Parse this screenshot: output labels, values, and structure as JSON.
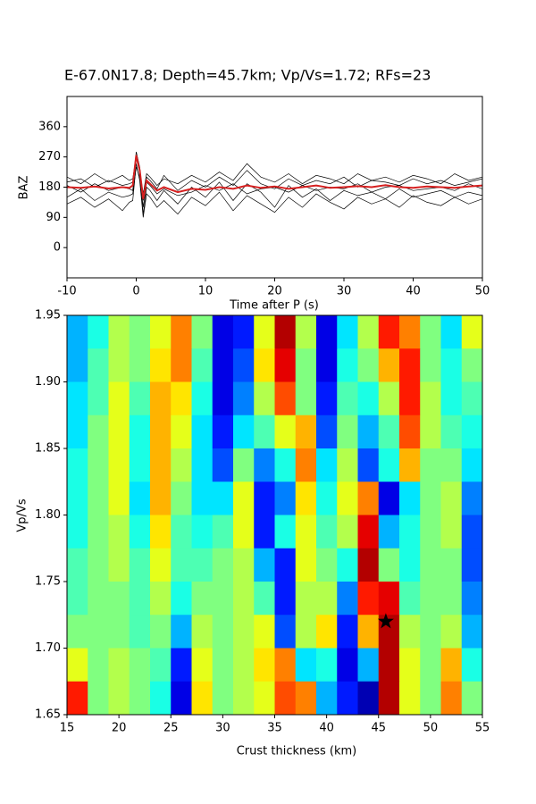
{
  "chart_data": [
    {
      "type": "line",
      "title": "E-67.0N17.8; Depth=45.7km; Vp/Vs=1.72; RFs=23",
      "xlabel": "Time after P (s)",
      "ylabel": "BAZ",
      "xlim": [
        -10,
        50
      ],
      "ylim": [
        -90,
        450
      ],
      "xticks": [
        -10,
        0,
        10,
        20,
        30,
        40,
        50
      ],
      "yticks": [
        0,
        90,
        180,
        270,
        360
      ],
      "x": [
        -10,
        -8,
        -6,
        -4,
        -2,
        -1,
        -0.5,
        0,
        0.5,
        1,
        1.5,
        2,
        3,
        4,
        6,
        8,
        10,
        12,
        14,
        16,
        18,
        20,
        22,
        24,
        26,
        28,
        30,
        32,
        34,
        36,
        38,
        40,
        42,
        44,
        46,
        48,
        50
      ],
      "series": [
        {
          "color": "#000000",
          "values": [
            195,
            205,
            180,
            200,
            185,
            190,
            195,
            285,
            240,
            140,
            210,
            200,
            175,
            215,
            170,
            200,
            180,
            210,
            185,
            230,
            190,
            175,
            205,
            185,
            200,
            190,
            210,
            180,
            200,
            195,
            185,
            205,
            190,
            200,
            185,
            195,
            205
          ]
        },
        {
          "color": "#000000",
          "values": [
            130,
            150,
            120,
            145,
            110,
            135,
            140,
            250,
            200,
            90,
            160,
            150,
            120,
            140,
            100,
            150,
            125,
            165,
            110,
            155,
            130,
            105,
            150,
            120,
            160,
            135,
            115,
            150,
            130,
            145,
            120,
            155,
            135,
            125,
            150,
            130,
            145
          ]
        },
        {
          "color": "#000000",
          "values": [
            210,
            190,
            220,
            195,
            215,
            200,
            205,
            270,
            230,
            160,
            220,
            210,
            185,
            205,
            190,
            215,
            195,
            225,
            200,
            250,
            210,
            195,
            220,
            190,
            215,
            205,
            190,
            220,
            200,
            210,
            195,
            215,
            205,
            190,
            220,
            200,
            210
          ]
        },
        {
          "color": "#000000",
          "values": [
            150,
            175,
            140,
            165,
            150,
            155,
            160,
            240,
            210,
            100,
            180,
            170,
            140,
            170,
            130,
            180,
            150,
            195,
            140,
            190,
            165,
            120,
            185,
            150,
            175,
            140,
            170,
            155,
            165,
            145,
            175,
            150,
            160,
            170,
            150,
            165,
            155
          ]
        },
        {
          "color": "#000000",
          "values": [
            185,
            165,
            190,
            170,
            180,
            175,
            170,
            265,
            225,
            120,
            195,
            185,
            160,
            175,
            155,
            165,
            185,
            170,
            190,
            160,
            175,
            180,
            165,
            185,
            170,
            180,
            175,
            190,
            165,
            180,
            185,
            170,
            175,
            180,
            170,
            190,
            175
          ]
        },
        {
          "color": "#d62020",
          "values": [
            180,
            178,
            182,
            176,
            180,
            178,
            185,
            275,
            230,
            145,
            200,
            190,
            170,
            180,
            165,
            175,
            172,
            180,
            175,
            185,
            178,
            182,
            175,
            180,
            185,
            178,
            180,
            183,
            180,
            186,
            180,
            178,
            182,
            180,
            178,
            182,
            185
          ]
        }
      ]
    },
    {
      "type": "heatmap",
      "xlabel": "Crust thickness (km)",
      "ylabel": "Vp/Vs",
      "xlim": [
        15,
        55
      ],
      "ylim": [
        1.65,
        1.95
      ],
      "xticks": [
        15,
        20,
        25,
        30,
        35,
        40,
        45,
        50,
        55
      ],
      "yticks": [
        1.65,
        {
          "value": 1.7,
          "label": "1.70"
        },
        1.75,
        {
          "value": 1.8,
          "label": "1.80"
        },
        1.85,
        {
          "value": 1.9,
          "label": "1.90"
        },
        1.95
      ],
      "colormap": "jet",
      "values": [
        [
          0.3,
          0.4,
          0.55,
          0.5,
          0.6,
          0.75,
          0.5,
          0.1,
          0.15,
          0.6,
          0.95,
          0.55,
          0.1,
          0.35,
          0.55,
          0.85,
          0.75,
          0.5,
          0.35,
          0.6
        ],
        [
          0.3,
          0.45,
          0.55,
          0.5,
          0.65,
          0.75,
          0.45,
          0.1,
          0.2,
          0.65,
          0.9,
          0.5,
          0.1,
          0.4,
          0.5,
          0.7,
          0.85,
          0.5,
          0.4,
          0.5
        ],
        [
          0.35,
          0.45,
          0.6,
          0.45,
          0.7,
          0.65,
          0.4,
          0.1,
          0.25,
          0.55,
          0.8,
          0.5,
          0.15,
          0.45,
          0.4,
          0.55,
          0.85,
          0.55,
          0.4,
          0.45
        ],
        [
          0.35,
          0.5,
          0.6,
          0.4,
          0.7,
          0.6,
          0.35,
          0.15,
          0.35,
          0.45,
          0.6,
          0.7,
          0.2,
          0.5,
          0.3,
          0.45,
          0.8,
          0.55,
          0.45,
          0.4
        ],
        [
          0.4,
          0.5,
          0.6,
          0.4,
          0.7,
          0.55,
          0.35,
          0.2,
          0.5,
          0.25,
          0.4,
          0.75,
          0.35,
          0.55,
          0.2,
          0.4,
          0.7,
          0.5,
          0.5,
          0.35
        ],
        [
          0.4,
          0.5,
          0.6,
          0.35,
          0.7,
          0.5,
          0.35,
          0.35,
          0.6,
          0.15,
          0.25,
          0.65,
          0.4,
          0.6,
          0.75,
          0.1,
          0.35,
          0.5,
          0.55,
          0.25
        ],
        [
          0.4,
          0.5,
          0.55,
          0.4,
          0.65,
          0.45,
          0.4,
          0.45,
          0.6,
          0.15,
          0.4,
          0.6,
          0.45,
          0.55,
          0.9,
          0.3,
          0.4,
          0.5,
          0.55,
          0.2
        ],
        [
          0.45,
          0.5,
          0.55,
          0.45,
          0.6,
          0.45,
          0.45,
          0.5,
          0.55,
          0.3,
          0.15,
          0.6,
          0.5,
          0.4,
          0.95,
          0.5,
          0.4,
          0.5,
          0.5,
          0.2
        ],
        [
          0.45,
          0.5,
          0.5,
          0.45,
          0.55,
          0.4,
          0.5,
          0.5,
          0.55,
          0.45,
          0.15,
          0.55,
          0.55,
          0.25,
          0.85,
          0.9,
          0.45,
          0.5,
          0.5,
          0.25
        ],
        [
          0.5,
          0.5,
          0.5,
          0.45,
          0.5,
          0.3,
          0.55,
          0.5,
          0.55,
          0.6,
          0.2,
          0.55,
          0.65,
          0.15,
          0.7,
          0.95,
          0.55,
          0.5,
          0.55,
          0.3
        ],
        [
          0.6,
          0.5,
          0.55,
          0.5,
          0.45,
          0.15,
          0.6,
          0.5,
          0.55,
          0.65,
          0.75,
          0.35,
          0.4,
          0.1,
          0.3,
          0.95,
          0.6,
          0.5,
          0.7,
          0.4
        ],
        [
          0.85,
          0.5,
          0.55,
          0.5,
          0.4,
          0.1,
          0.65,
          0.5,
          0.55,
          0.6,
          0.8,
          0.75,
          0.3,
          0.15,
          0.05,
          0.95,
          0.6,
          0.5,
          0.75,
          0.5
        ]
      ],
      "marker": {
        "x": 45.7,
        "y": 1.72
      }
    }
  ]
}
